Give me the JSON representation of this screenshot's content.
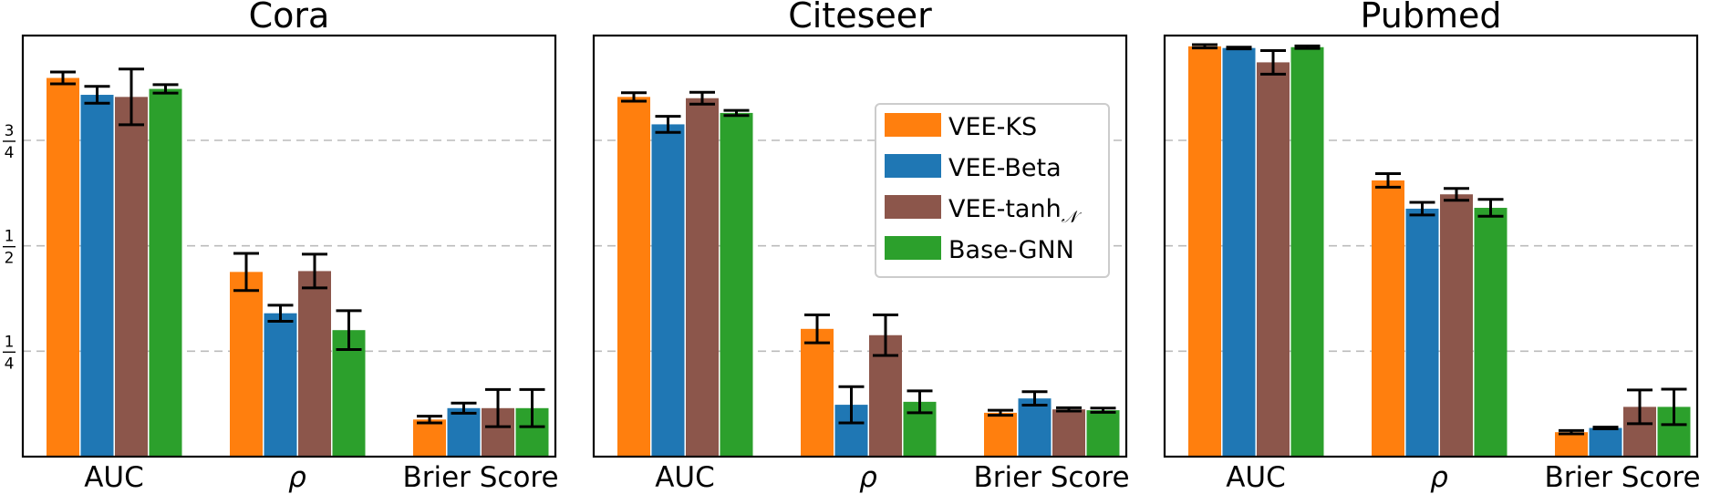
{
  "colors": {
    "VEE-KS": "#ff7f0e",
    "VEE-Beta": "#1f77b4",
    "VEE-tanh": "#8c564b",
    "Base-GNN": "#2ca02c",
    "grid": "#bbbbbb",
    "errorbar": "#000000"
  },
  "legend": {
    "placement": "top-right of Citeseer panel",
    "items": [
      {
        "key": "VEE-KS",
        "label": "VEE-KS"
      },
      {
        "key": "VEE-Beta",
        "label": "VEE-Beta"
      },
      {
        "key": "VEE-tanh",
        "label": "VEE-tanh",
        "subscript": "𝒩"
      },
      {
        "key": "Base-GNN",
        "label": "Base-GNN"
      }
    ]
  },
  "y_ticks": [
    {
      "value": 0.25,
      "num": "1",
      "den": "4"
    },
    {
      "value": 0.5,
      "num": "1",
      "den": "2"
    },
    {
      "value": 0.75,
      "num": "3",
      "den": "4"
    }
  ],
  "chart_data": [
    {
      "type": "bar",
      "title": "Cora",
      "categories": [
        "AUC",
        "ρ",
        "Brier Score"
      ],
      "ylim": [
        0,
        1
      ],
      "grid": "horizontal dashed at 1/4, 1/2, 3/4",
      "series": [
        {
          "name": "VEE-KS",
          "values": [
            0.898,
            0.438,
            0.088
          ],
          "errors": [
            0.014,
            0.044,
            0.008
          ]
        },
        {
          "name": "VEE-Beta",
          "values": [
            0.858,
            0.34,
            0.115
          ],
          "errors": [
            0.02,
            0.019,
            0.012
          ]
        },
        {
          "name": "VEE-tanh",
          "values": [
            0.853,
            0.44,
            0.115
          ],
          "errors": [
            0.066,
            0.04,
            0.044
          ]
        },
        {
          "name": "Base-GNN",
          "values": [
            0.872,
            0.3,
            0.115
          ],
          "errors": [
            0.01,
            0.046,
            0.044
          ]
        }
      ]
    },
    {
      "type": "bar",
      "title": "Citeseer",
      "categories": [
        "AUC",
        "ρ",
        "Brier Score"
      ],
      "ylim": [
        0,
        1
      ],
      "grid": "horizontal dashed at 1/4, 1/2, 3/4",
      "series": [
        {
          "name": "VEE-KS",
          "values": [
            0.853,
            0.303,
            0.104
          ],
          "errors": [
            0.01,
            0.033,
            0.006
          ]
        },
        {
          "name": "VEE-Beta",
          "values": [
            0.788,
            0.123,
            0.138
          ],
          "errors": [
            0.019,
            0.043,
            0.016
          ]
        },
        {
          "name": "VEE-tanh",
          "values": [
            0.85,
            0.288,
            0.112
          ],
          "errors": [
            0.014,
            0.048,
            0.004
          ]
        },
        {
          "name": "Base-GNN",
          "values": [
            0.815,
            0.13,
            0.11
          ],
          "errors": [
            0.006,
            0.026,
            0.005
          ]
        }
      ]
    },
    {
      "type": "bar",
      "title": "Pubmed",
      "categories": [
        "AUC",
        "ρ",
        "Brier Score"
      ],
      "ylim": [
        0,
        1
      ],
      "grid": "horizontal dashed at 1/4, 1/2, 3/4",
      "series": [
        {
          "name": "VEE-KS",
          "values": [
            0.973,
            0.655,
            0.058
          ],
          "errors": [
            0.004,
            0.016,
            0.004
          ]
        },
        {
          "name": "VEE-Beta",
          "values": [
            0.969,
            0.588,
            0.068
          ],
          "errors": [
            0.002,
            0.015,
            0.002
          ]
        },
        {
          "name": "VEE-tanh",
          "values": [
            0.935,
            0.622,
            0.118
          ],
          "errors": [
            0.028,
            0.014,
            0.04
          ]
        },
        {
          "name": "Base-GNN",
          "values": [
            0.971,
            0.59,
            0.118
          ],
          "errors": [
            0.003,
            0.02,
            0.042
          ]
        }
      ]
    }
  ]
}
